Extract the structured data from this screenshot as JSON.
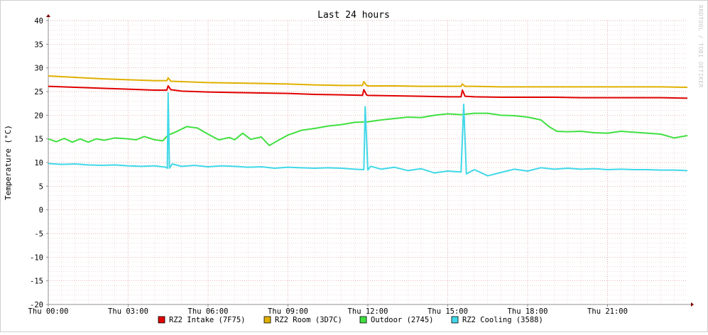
{
  "chart_data": {
    "type": "line",
    "title": "Last 24 hours",
    "ylabel": "Temperature (°C)",
    "watermark": "RRDTOOL / TOBI OETIKER",
    "x_unit": "hours",
    "xlim": [
      0,
      24
    ],
    "ylim": [
      -20,
      40
    ],
    "y_ticks": [
      -20,
      -15,
      -10,
      -5,
      0,
      5,
      10,
      15,
      20,
      25,
      30,
      35,
      40
    ],
    "x_ticks": [
      {
        "x": 0,
        "label": "Thu 00:00"
      },
      {
        "x": 3,
        "label": "Thu 03:00"
      },
      {
        "x": 6,
        "label": "Thu 06:00"
      },
      {
        "x": 9,
        "label": "Thu 09:00"
      },
      {
        "x": 12,
        "label": "Thu 12:00"
      },
      {
        "x": 15,
        "label": "Thu 15:00"
      },
      {
        "x": 18,
        "label": "Thu 18:00"
      },
      {
        "x": 21,
        "label": "Thu 21:00"
      }
    ],
    "grid": true,
    "legend_position": "bottom",
    "series": [
      {
        "name": "RZ2 Intake (7F75)",
        "color": "#e00000",
        "points": [
          [
            0,
            26.1
          ],
          [
            1,
            25.9
          ],
          [
            2,
            25.7
          ],
          [
            3,
            25.5
          ],
          [
            4,
            25.3
          ],
          [
            4.45,
            25.3
          ],
          [
            4.5,
            26.2
          ],
          [
            4.6,
            25.4
          ],
          [
            5,
            25.1
          ],
          [
            6,
            24.9
          ],
          [
            7,
            24.8
          ],
          [
            8,
            24.7
          ],
          [
            9,
            24.6
          ],
          [
            10,
            24.4
          ],
          [
            11,
            24.3
          ],
          [
            11.8,
            24.2
          ],
          [
            11.85,
            25.4
          ],
          [
            11.95,
            24.3
          ],
          [
            12,
            24.2
          ],
          [
            13,
            24.1
          ],
          [
            14,
            24.0
          ],
          [
            15,
            23.9
          ],
          [
            15.5,
            23.9
          ],
          [
            15.55,
            25.3
          ],
          [
            15.65,
            24.0
          ],
          [
            16,
            23.9
          ],
          [
            17,
            23.8
          ],
          [
            18,
            23.8
          ],
          [
            19,
            23.8
          ],
          [
            20,
            23.7
          ],
          [
            21,
            23.7
          ],
          [
            22,
            23.7
          ],
          [
            23,
            23.7
          ],
          [
            24,
            23.6
          ]
        ]
      },
      {
        "name": "RZ2 Room (3D7C)",
        "color": "#e0b000",
        "points": [
          [
            0,
            28.3
          ],
          [
            1,
            28.0
          ],
          [
            2,
            27.7
          ],
          [
            3,
            27.5
          ],
          [
            4,
            27.3
          ],
          [
            4.45,
            27.3
          ],
          [
            4.5,
            27.9
          ],
          [
            4.6,
            27.2
          ],
          [
            5,
            27.1
          ],
          [
            6,
            26.9
          ],
          [
            7,
            26.8
          ],
          [
            8,
            26.7
          ],
          [
            9,
            26.6
          ],
          [
            10,
            26.4
          ],
          [
            11,
            26.3
          ],
          [
            11.8,
            26.3
          ],
          [
            11.85,
            27.1
          ],
          [
            11.95,
            26.3
          ],
          [
            12,
            26.2
          ],
          [
            13,
            26.2
          ],
          [
            14,
            26.1
          ],
          [
            15,
            26.1
          ],
          [
            15.5,
            26.1
          ],
          [
            15.55,
            26.6
          ],
          [
            15.65,
            26.1
          ],
          [
            16,
            26.1
          ],
          [
            17,
            26.0
          ],
          [
            18,
            26.0
          ],
          [
            19,
            26.0
          ],
          [
            20,
            26.0
          ],
          [
            21,
            26.0
          ],
          [
            22,
            26.0
          ],
          [
            23,
            26.0
          ],
          [
            24,
            25.9
          ]
        ]
      },
      {
        "name": "Outdoor (2745)",
        "color": "#40e040",
        "points": [
          [
            0,
            15.0
          ],
          [
            0.3,
            14.4
          ],
          [
            0.6,
            15.1
          ],
          [
            0.9,
            14.3
          ],
          [
            1.2,
            15.0
          ],
          [
            1.5,
            14.3
          ],
          [
            1.8,
            15.0
          ],
          [
            2.1,
            14.7
          ],
          [
            2.5,
            15.2
          ],
          [
            3,
            15.0
          ],
          [
            3.3,
            14.8
          ],
          [
            3.6,
            15.5
          ],
          [
            4,
            14.8
          ],
          [
            4.3,
            14.6
          ],
          [
            4.5,
            15.8
          ],
          [
            4.8,
            16.5
          ],
          [
            5.2,
            17.6
          ],
          [
            5.6,
            17.3
          ],
          [
            6,
            16.0
          ],
          [
            6.4,
            14.8
          ],
          [
            6.8,
            15.3
          ],
          [
            7,
            14.8
          ],
          [
            7.3,
            16.2
          ],
          [
            7.6,
            14.9
          ],
          [
            8,
            15.4
          ],
          [
            8.3,
            13.6
          ],
          [
            8.7,
            14.9
          ],
          [
            9,
            15.8
          ],
          [
            9.5,
            16.8
          ],
          [
            10,
            17.2
          ],
          [
            10.5,
            17.7
          ],
          [
            11,
            18.0
          ],
          [
            11.5,
            18.5
          ],
          [
            12,
            18.6
          ],
          [
            12.5,
            19.0
          ],
          [
            13,
            19.3
          ],
          [
            13.5,
            19.6
          ],
          [
            14,
            19.5
          ],
          [
            14.5,
            20.0
          ],
          [
            15,
            20.3
          ],
          [
            15.5,
            20.1
          ],
          [
            16,
            20.4
          ],
          [
            16.5,
            20.4
          ],
          [
            17,
            20.0
          ],
          [
            17.5,
            19.9
          ],
          [
            18,
            19.6
          ],
          [
            18.5,
            19.0
          ],
          [
            18.8,
            17.6
          ],
          [
            19.1,
            16.6
          ],
          [
            19.5,
            16.5
          ],
          [
            20,
            16.6
          ],
          [
            20.5,
            16.3
          ],
          [
            21,
            16.2
          ],
          [
            21.5,
            16.6
          ],
          [
            22,
            16.4
          ],
          [
            22.5,
            16.2
          ],
          [
            23,
            16.0
          ],
          [
            23.5,
            15.2
          ],
          [
            24,
            15.7
          ]
        ]
      },
      {
        "name": "RZ2 Cooling (3588)",
        "color": "#40d8e8",
        "points": [
          [
            0,
            9.8
          ],
          [
            0.5,
            9.6
          ],
          [
            1,
            9.7
          ],
          [
            1.5,
            9.5
          ],
          [
            2,
            9.4
          ],
          [
            2.5,
            9.5
          ],
          [
            3,
            9.3
          ],
          [
            3.5,
            9.2
          ],
          [
            4,
            9.3
          ],
          [
            4.42,
            9.0
          ],
          [
            4.47,
            8.8
          ],
          [
            4.5,
            24.7
          ],
          [
            4.55,
            8.8
          ],
          [
            4.65,
            9.7
          ],
          [
            5,
            9.2
          ],
          [
            5.5,
            9.4
          ],
          [
            6,
            9.1
          ],
          [
            6.5,
            9.3
          ],
          [
            7,
            9.2
          ],
          [
            7.5,
            9.0
          ],
          [
            8,
            9.1
          ],
          [
            8.5,
            8.8
          ],
          [
            9,
            9.0
          ],
          [
            9.5,
            8.9
          ],
          [
            10,
            8.8
          ],
          [
            10.5,
            8.9
          ],
          [
            11,
            8.8
          ],
          [
            11.5,
            8.6
          ],
          [
            11.85,
            8.5
          ],
          [
            11.9,
            21.8
          ],
          [
            12.0,
            8.4
          ],
          [
            12.1,
            9.2
          ],
          [
            12.5,
            8.6
          ],
          [
            13,
            9.0
          ],
          [
            13.5,
            8.3
          ],
          [
            14,
            8.7
          ],
          [
            14.5,
            7.8
          ],
          [
            15,
            8.2
          ],
          [
            15.5,
            8.0
          ],
          [
            15.6,
            22.3
          ],
          [
            15.7,
            7.6
          ],
          [
            16,
            8.5
          ],
          [
            16.5,
            7.2
          ],
          [
            17,
            7.9
          ],
          [
            17.5,
            8.6
          ],
          [
            18,
            8.2
          ],
          [
            18.5,
            8.9
          ],
          [
            19,
            8.6
          ],
          [
            19.5,
            8.8
          ],
          [
            20,
            8.6
          ],
          [
            20.5,
            8.7
          ],
          [
            21,
            8.5
          ],
          [
            21.5,
            8.6
          ],
          [
            22,
            8.5
          ],
          [
            22.5,
            8.5
          ],
          [
            23,
            8.4
          ],
          [
            23.5,
            8.4
          ],
          [
            24,
            8.3
          ]
        ]
      }
    ]
  }
}
